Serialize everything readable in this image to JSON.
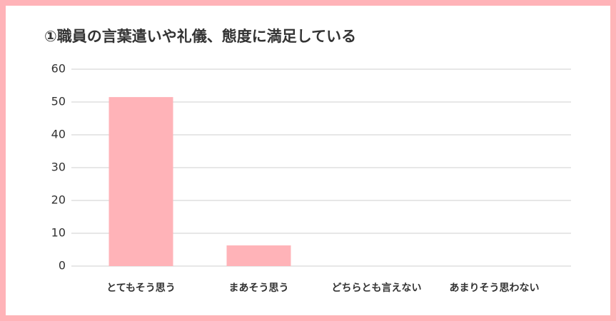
{
  "chart_data": {
    "type": "bar",
    "title": "①職員の言葉遣いや礼儀、態度に満足している",
    "categories": [
      "とてもそう思う",
      "まあそう思う",
      "どちらとも言えない",
      "あまりそう思わない"
    ],
    "values": [
      51.5,
      6.3,
      0,
      0
    ],
    "color": "#ffb3b8",
    "ylim": [
      0,
      60
    ],
    "yticks": [
      0,
      10,
      20,
      30,
      40,
      50,
      60
    ],
    "grid": true
  }
}
